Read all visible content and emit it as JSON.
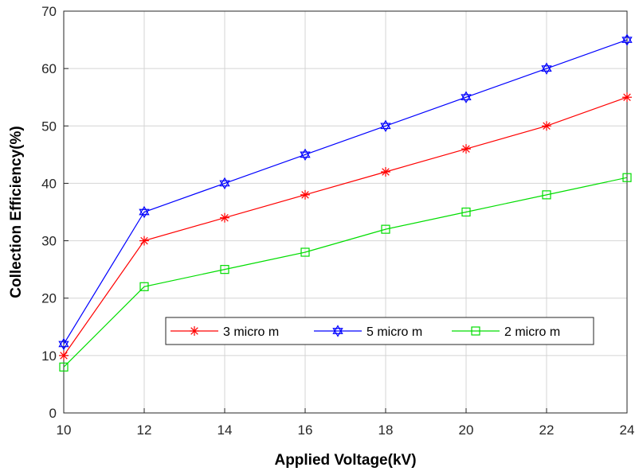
{
  "chart_data": {
    "type": "line",
    "xlabel": "Applied Voltage(kV)",
    "ylabel": "Collection Efficiency(%)",
    "xlim": [
      10,
      24
    ],
    "ylim": [
      0,
      70
    ],
    "x_ticks": [
      10,
      12,
      14,
      16,
      18,
      20,
      22,
      24
    ],
    "y_ticks": [
      0,
      10,
      20,
      30,
      40,
      50,
      60,
      70
    ],
    "grid": true,
    "legend_position": "center-right",
    "x": [
      10,
      12,
      14,
      16,
      18,
      20,
      22,
      24
    ],
    "series": [
      {
        "name": "3 micro m",
        "color": "#ff0000",
        "marker": "asterisk",
        "values": [
          10,
          30,
          34,
          38,
          42,
          46,
          50,
          55
        ]
      },
      {
        "name": "5 micro m",
        "color": "#0000ff",
        "marker": "hexagram",
        "values": [
          12,
          35,
          40,
          45,
          50,
          55,
          60,
          65
        ]
      },
      {
        "name": "2 micro m",
        "color": "#00dd00",
        "marker": "square",
        "values": [
          8,
          22,
          25,
          28,
          32,
          35,
          38,
          41
        ]
      }
    ]
  }
}
